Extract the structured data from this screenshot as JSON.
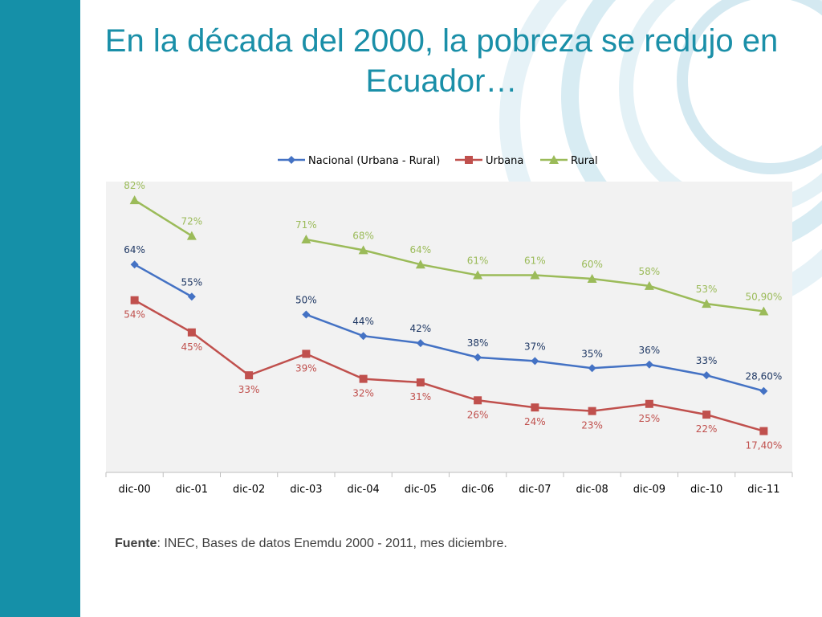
{
  "slide": {
    "title": "En la década del 2000, la pobreza se redujo en Ecuador…",
    "source_label": "Fuente",
    "source_text": ": INEC, Bases de datos Enemdu 2000 - 2011, mes diciembre."
  },
  "colors": {
    "sidebar": "#1590a8",
    "title": "#1a8fa8",
    "nacional": "#4472c4",
    "urbana": "#c0504d",
    "rural": "#9bbb59",
    "plot_bg": "#f2f2f2",
    "swirl": "#d8ecf3"
  },
  "chart_data": {
    "type": "line",
    "title": "",
    "xlabel": "",
    "ylabel": "",
    "ylim": [
      0,
      90
    ],
    "grid": false,
    "legend": "top",
    "categories": [
      "dic-00",
      "dic-01",
      "dic-02",
      "dic-03",
      "dic-04",
      "dic-05",
      "dic-06",
      "dic-07",
      "dic-08",
      "dic-09",
      "dic-10",
      "dic-11"
    ],
    "series": [
      {
        "name": "Nacional (Urbana - Rural)",
        "marker": "diamond",
        "values": [
          64,
          55,
          null,
          50,
          44,
          42,
          38,
          37,
          35,
          36,
          33,
          28.6
        ],
        "labels": [
          "64%",
          "55%",
          "",
          "50%",
          "44%",
          "42%",
          "38%",
          "37%",
          "35%",
          "36%",
          "33%",
          "28,60%"
        ]
      },
      {
        "name": "Urbana",
        "marker": "square",
        "values": [
          54,
          45,
          33,
          39,
          32,
          31,
          26,
          24,
          23,
          25,
          22,
          17.4
        ],
        "labels": [
          "54%",
          "45%",
          "33%",
          "39%",
          "32%",
          "31%",
          "26%",
          "24%",
          "23%",
          "25%",
          "22%",
          "17,40%"
        ]
      },
      {
        "name": "Rural",
        "marker": "triangle",
        "values": [
          82,
          72,
          null,
          71,
          68,
          64,
          61,
          61,
          60,
          58,
          53,
          50.9
        ],
        "labels": [
          "82%",
          "72%",
          "",
          "71%",
          "68%",
          "64%",
          "61%",
          "61%",
          "60%",
          "58%",
          "53%",
          "50,90%"
        ]
      }
    ]
  }
}
